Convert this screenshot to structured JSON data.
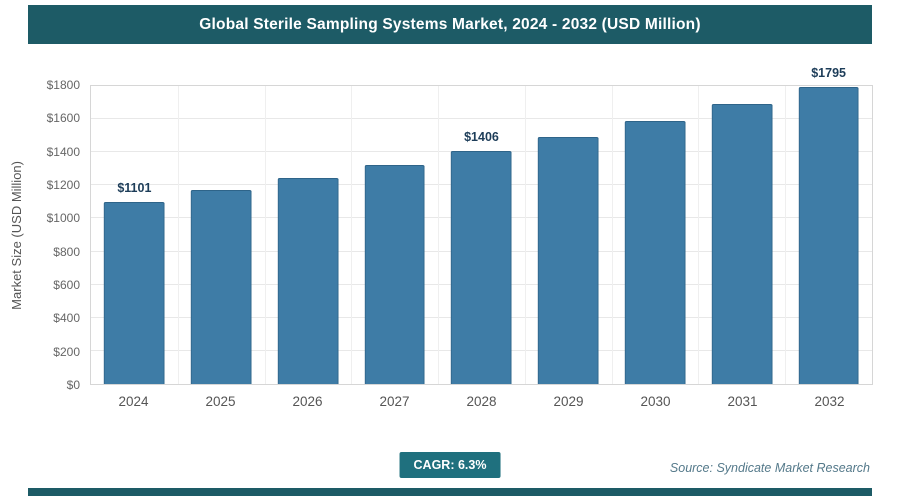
{
  "header": {
    "title": "Global Sterile Sampling Systems Market, 2024 - 2032 (USD Million)"
  },
  "chart_data": {
    "type": "bar",
    "title": "Global Sterile Sampling Systems Market, 2024 - 2032 (USD Million)",
    "ylabel": "Market Size (USD Million)",
    "xlabel": "",
    "categories": [
      "2024",
      "2025",
      "2026",
      "2027",
      "2028",
      "2029",
      "2030",
      "2031",
      "2032"
    ],
    "values": [
      1101,
      1170,
      1244,
      1323,
      1406,
      1494,
      1589,
      1689,
      1795
    ],
    "bar_labels": [
      "$1101",
      "",
      "",
      "",
      "$1406",
      "",
      "",
      "",
      "$1795"
    ],
    "ylim": [
      0,
      1800
    ],
    "ytick_step": 200,
    "ytick_labels": [
      "$0",
      "$200",
      "$400",
      "$600",
      "$800",
      "$1000",
      "$1200",
      "$1400",
      "$1600",
      "$1800"
    ],
    "grid": true,
    "legend_position": "none"
  },
  "footer": {
    "cagr_label": "CAGR: 6.3%",
    "source_text": "Source: Syndicate Market Research"
  },
  "colors": {
    "header_bg": "#1d5b66",
    "bar": "#3e7ca6",
    "bar_border": "#2e6489",
    "badge_bg": "#1f707e",
    "data_label": "#1d3d59",
    "source_text": "#54798a"
  }
}
